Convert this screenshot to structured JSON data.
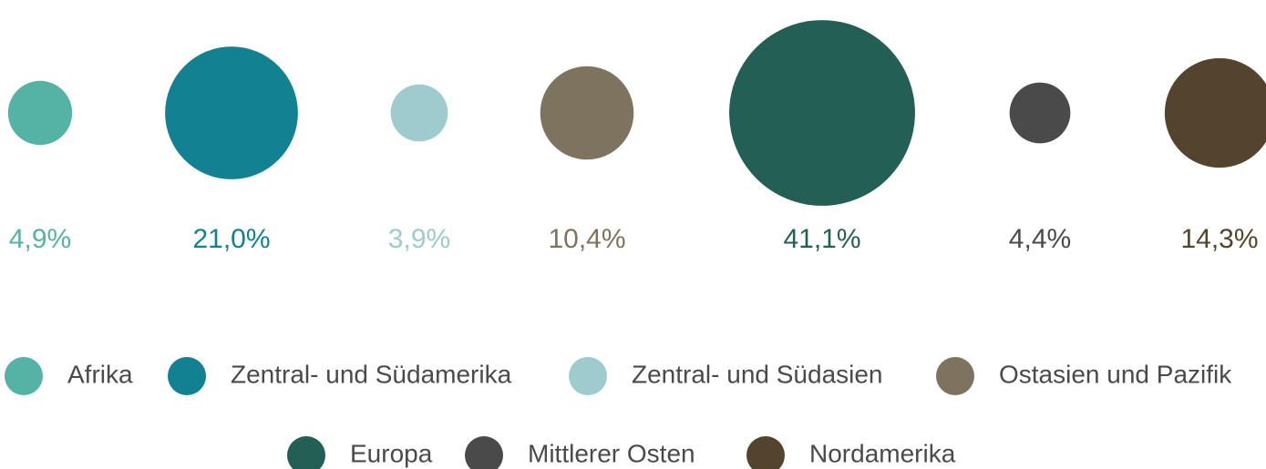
{
  "chart_data": {
    "type": "bubble",
    "categories": [
      "Afrika",
      "Zentral- und Südamerika",
      "Zentral- und Südasien",
      "Ostasien und Pazifik",
      "Europa",
      "Mittlerer Osten",
      "Nordamerika"
    ],
    "values": [
      4.9,
      21.0,
      3.9,
      10.4,
      41.1,
      4.4,
      14.3
    ],
    "value_labels": [
      "4,9%",
      "21,0%",
      "3,9%",
      "10,4%",
      "41,1%",
      "4,4%",
      "14,3%"
    ],
    "colors": [
      "#55b3a6",
      "#128191",
      "#9ecbcd",
      "#7e735e",
      "#235f54",
      "#4a4a4a",
      "#54442e"
    ]
  }
}
